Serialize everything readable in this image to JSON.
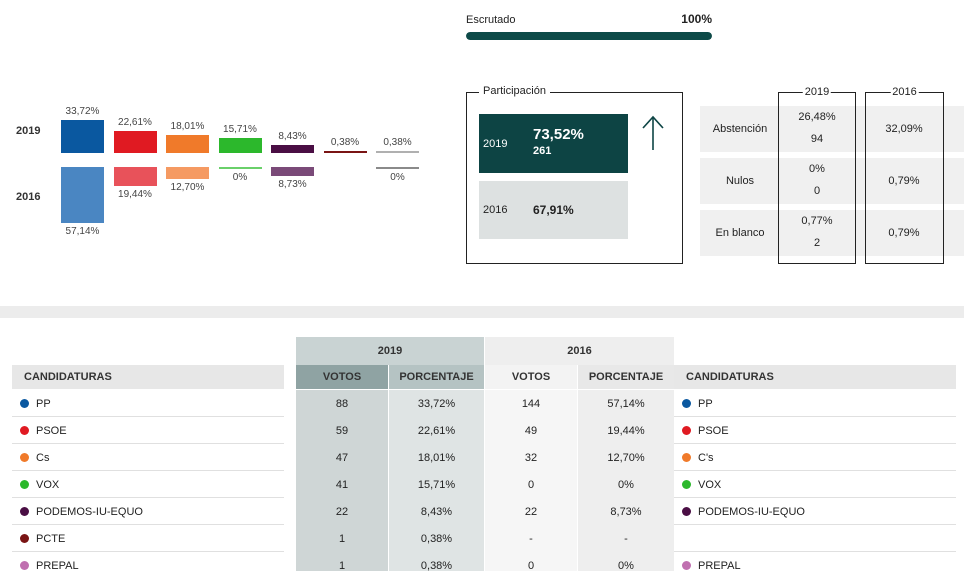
{
  "escrutado": {
    "label": "Escrutado",
    "value": "100%",
    "fraction": 1.0
  },
  "chart_data": {
    "type": "bar",
    "series": [
      {
        "name": "2019",
        "values": [
          33.72,
          22.61,
          18.01,
          15.71,
          8.43,
          0.38,
          0.38
        ],
        "labels": [
          "33,72%",
          "22,61%",
          "18,01%",
          "15,71%",
          "8,43%",
          "0,38%",
          "0,38%"
        ]
      },
      {
        "name": "2016",
        "values": [
          57.14,
          19.44,
          12.7,
          0,
          8.73,
          null,
          0
        ],
        "labels": [
          "57,14%",
          "19,44%",
          "12,70%",
          "0%",
          "8,73%",
          "",
          "0%"
        ]
      }
    ],
    "colors_2019": [
      "#0a58a0",
      "#e01a22",
      "#f07a2a",
      "#2cb82c",
      "#4a0e44",
      "#7a1414",
      "#b0b0b0"
    ],
    "colors_2016": [
      "#4a86c2",
      "#e8525a",
      "#f59a62",
      "#6ad06a",
      "#7a4a78",
      "#9a5050",
      "#8a8a8a"
    ]
  },
  "participacion": {
    "title": "Participación",
    "y2019": {
      "year": "2019",
      "value": "73,52%",
      "votes": "261"
    },
    "y2016": {
      "year": "2016",
      "value": "67,91%"
    }
  },
  "abstencion": {
    "year_headers": [
      "2019",
      "2016"
    ],
    "rows": [
      {
        "name": "Abstención",
        "pct2019": "26,48%",
        "votes2019": "94",
        "pct2016": "32,09%"
      },
      {
        "name": "Nulos",
        "pct2019": "0%",
        "votes2019": "0",
        "pct2016": "0,79%"
      },
      {
        "name": "En blanco",
        "pct2019": "0,77%",
        "votes2019": "2",
        "pct2016": "0,79%"
      }
    ]
  },
  "results": {
    "year2019": "2019",
    "year2016": "2016",
    "headers": {
      "candidaturas": "CANDIDATURAS",
      "votos": "VOTOS",
      "porcentaje": "PORCENTAJE"
    },
    "rows": [
      {
        "name2019": "PP",
        "color": "#0a58a0",
        "votes2019": "88",
        "pct2019": "33,72%",
        "votes2016": "144",
        "pct2016": "57,14%",
        "name2016": "PP",
        "color2016": "#0a58a0"
      },
      {
        "name2019": "PSOE",
        "color": "#e01a22",
        "votes2019": "59",
        "pct2019": "22,61%",
        "votes2016": "49",
        "pct2016": "19,44%",
        "name2016": "PSOE",
        "color2016": "#e01a22"
      },
      {
        "name2019": "Cs",
        "color": "#f07a2a",
        "votes2019": "47",
        "pct2019": "18,01%",
        "votes2016": "32",
        "pct2016": "12,70%",
        "name2016": "C's",
        "color2016": "#f07a2a"
      },
      {
        "name2019": "VOX",
        "color": "#2cb82c",
        "votes2019": "41",
        "pct2019": "15,71%",
        "votes2016": "0",
        "pct2016": "0%",
        "name2016": "VOX",
        "color2016": "#2cb82c"
      },
      {
        "name2019": "PODEMOS-IU-EQUO",
        "color": "#4a0e44",
        "votes2019": "22",
        "pct2019": "8,43%",
        "votes2016": "22",
        "pct2016": "8,73%",
        "name2016": "PODEMOS-IU-EQUO",
        "color2016": "#4a0e44"
      },
      {
        "name2019": "PCTE",
        "color": "#7a1414",
        "votes2019": "1",
        "pct2019": "0,38%",
        "votes2016": "-",
        "pct2016": "-",
        "name2016": "",
        "color2016": ""
      },
      {
        "name2019": "PREPAL",
        "color": "#c070b0",
        "votes2019": "1",
        "pct2019": "0,38%",
        "votes2016": "0",
        "pct2016": "0%",
        "name2016": "PREPAL",
        "color2016": "#c070b0"
      }
    ]
  }
}
